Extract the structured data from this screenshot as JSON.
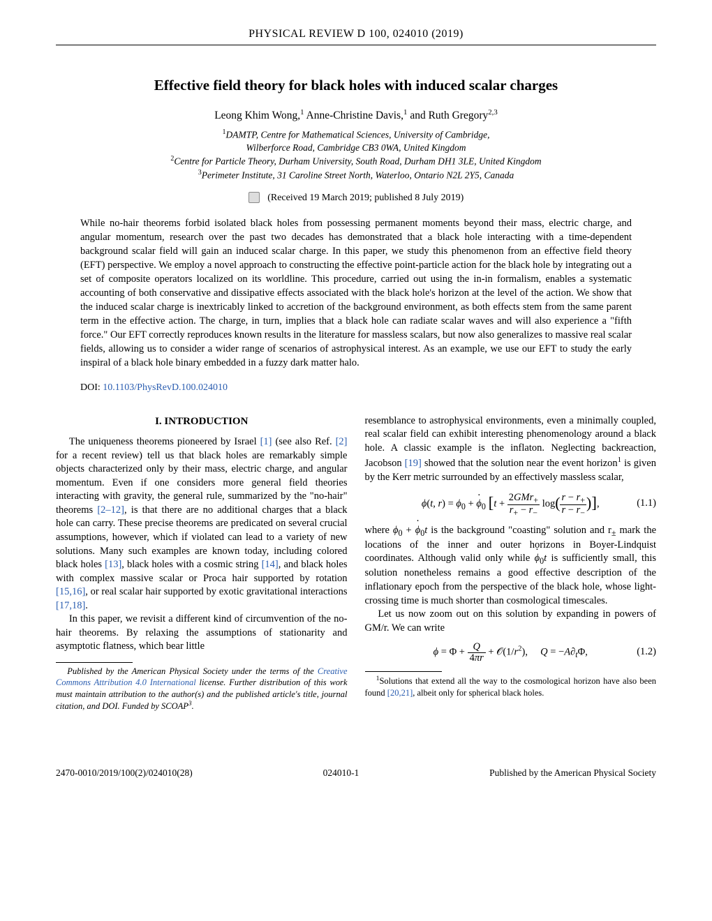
{
  "running_head": "PHYSICAL REVIEW D 100, 024010 (2019)",
  "title": "Effective field theory for black holes with induced scalar charges",
  "authors_html": "Leong Khim Wong,<sup>1</sup> Anne-Christine Davis,<sup>1</sup> and Ruth Gregory<sup>2,3</sup>",
  "affiliations": {
    "a1": "DAMTP, Centre for Mathematical Sciences, University of Cambridge,",
    "a1b": "Wilberforce Road, Cambridge CB3 0WA, United Kingdom",
    "a2": "Centre for Particle Theory, Durham University, South Road, Durham DH1 3LE, United Kingdom",
    "a3": "Perimeter Institute, 31 Caroline Street North, Waterloo, Ontario N2L 2Y5, Canada"
  },
  "received": "(Received 19 March 2019; published 8 July 2019)",
  "abstract": "While no-hair theorems forbid isolated black holes from possessing permanent moments beyond their mass, electric charge, and angular momentum, research over the past two decades has demonstrated that a black hole interacting with a time-dependent background scalar field will gain an induced scalar charge. In this paper, we study this phenomenon from an effective field theory (EFT) perspective. We employ a novel approach to constructing the effective point-particle action for the black hole by integrating out a set of composite operators localized on its worldline. This procedure, carried out using the in-in formalism, enables a systematic accounting of both conservative and dissipative effects associated with the black hole's horizon at the level of the action. We show that the induced scalar charge is inextricably linked to accretion of the background environment, as both effects stem from the same parent term in the effective action. The charge, in turn, implies that a black hole can radiate scalar waves and will also experience a \"fifth force.\" Our EFT correctly reproduces known results in the literature for massless scalars, but now also generalizes to massive real scalar fields, allowing us to consider a wider range of scenarios of astrophysical interest. As an example, we use our EFT to study the early inspiral of a black hole binary embedded in a fuzzy dark matter halo.",
  "doi_label": "DOI:",
  "doi_link": "10.1103/PhysRevD.100.024010",
  "section1_head": "I. INTRODUCTION",
  "left_col": {
    "p1_a": "The uniqueness theorems pioneered by Israel ",
    "p1_ref1": "[1]",
    "p1_b": " (see also Ref. ",
    "p1_ref2": "[2]",
    "p1_c": " for a recent review) tell us that black holes are remarkably simple objects characterized only by their mass, electric charge, and angular momentum. Even if one considers more general field theories interacting with gravity, the general rule, summarized by the \"no-hair\" theorems ",
    "p1_ref3": "[2–12]",
    "p1_d": ", is that there are no additional charges that a black hole can carry. These precise theorems are predicated on several crucial assumptions, however, which if violated can lead to a variety of new solutions. Many such examples are known today, including colored black holes ",
    "p1_ref4": "[13]",
    "p1_e": ", black holes with a cosmic string ",
    "p1_ref5": "[14]",
    "p1_f": ", and black holes with complex massive scalar or Proca hair supported by rotation ",
    "p1_ref6": "[15,16]",
    "p1_g": ", or real scalar hair supported by exotic gravitational interactions ",
    "p1_ref7": "[17,18]",
    "p1_h": ".",
    "p2": "In this paper, we revisit a different kind of circumvention of the no-hair theorems. By relaxing the assumptions of stationarity and asymptotic flatness, which bear little",
    "license_a": "Published by the American Physical Society under the terms of the ",
    "license_link": "Creative Commons Attribution 4.0 International",
    "license_b": " license. Further distribution of this work must maintain attribution to the author(s) and the published article's title, journal citation, and DOI. Funded by SCOAP",
    "license_sup": "3",
    "license_c": "."
  },
  "right_col": {
    "p1_a": "resemblance to astrophysical environments, even a minimally coupled, real scalar field can exhibit interesting phenomenology around a black hole. A classic example is the inflaton. Neglecting backreaction, Jacobson ",
    "p1_ref1": "[19]",
    "p1_b": " showed that the solution near the event horizon",
    "p1_sup": "1",
    "p1_c": " is given by the Kerr metric surrounded by an effectively massless scalar,",
    "eq1_num": "(1.1)",
    "p2_a": "where ",
    "p2_b": " is the background \"coasting\" solution and r",
    "p2_c": " mark the locations of the inner and outer horizons in Boyer-Lindquist coordinates. Although valid only while ",
    "p2_d": " is sufficiently small, this solution nonetheless remains a good effective description of the inflationary epoch from the perspective of the black hole, whose light-crossing time is much shorter than cosmological timescales.",
    "p3": "Let us now zoom out on this solution by expanding in powers of GM/r. We can write",
    "eq2_num": "(1.2)",
    "fn1_a": "Solutions that extend all the way to the cosmological horizon have also been found ",
    "fn1_ref": "[20,21]",
    "fn1_b": ", albeit only for spherical black holes."
  },
  "footer": {
    "left": "2470-0010/2019/100(2)/024010(28)",
    "center": "024010-1",
    "right": "Published by the American Physical Society"
  },
  "colors": {
    "link": "#2a5db0",
    "text": "#000000",
    "bg": "#ffffff"
  }
}
